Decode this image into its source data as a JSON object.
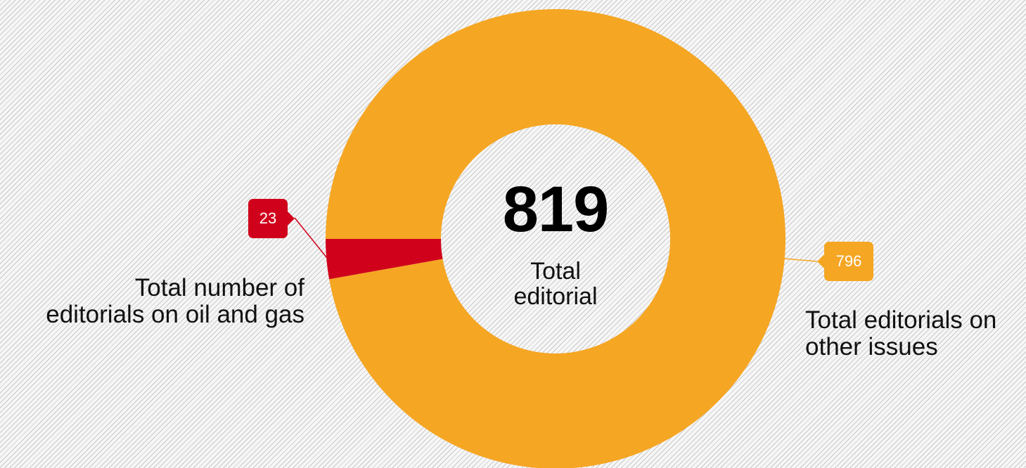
{
  "chart_data": {
    "type": "pie",
    "donut": true,
    "total": 819,
    "center_value": "819",
    "center_label_lines": [
      "Total",
      "editorial"
    ],
    "slices": [
      {
        "value": 23,
        "value_label": "23",
        "label_lines": [
          "Total number of",
          "editorials on oil and gas"
        ],
        "color": "#d0021b"
      },
      {
        "value": 796,
        "value_label": "796",
        "label_lines": [
          "Total editorials on",
          "other issues"
        ],
        "color": "#f5a623"
      }
    ],
    "legend": "none"
  }
}
